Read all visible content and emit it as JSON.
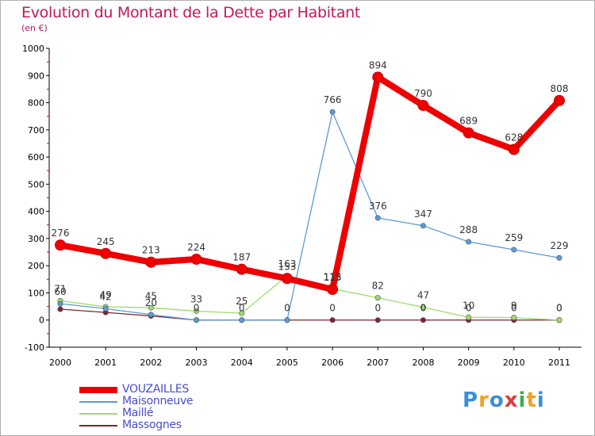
{
  "header": {
    "title": "Evolution du Montant de la Dette par Habitant",
    "subtitle": "(en €)"
  },
  "logo": {
    "letters": [
      "P",
      "r",
      "o",
      "x",
      "i",
      "t",
      "i"
    ],
    "colors": [
      "#3a8fd6",
      "#f0a020",
      "#3a8fd6",
      "#e03a3a",
      "#3ab04a",
      "#f0a020",
      "#3a8fd6"
    ]
  },
  "chart_data": {
    "type": "line",
    "title": "Evolution du Montant de la Dette par Habitant",
    "subtitle": "(en €)",
    "xlabel": "",
    "ylabel": "",
    "x": [
      "2000",
      "2001",
      "2002",
      "2003",
      "2004",
      "2005",
      "2006",
      "2007",
      "2008",
      "2009",
      "2010",
      "2011"
    ],
    "ylim": [
      -100,
      1000
    ],
    "yticks": [
      -100,
      0,
      100,
      200,
      300,
      400,
      500,
      600,
      700,
      800,
      900,
      1000
    ],
    "grid": false,
    "legend_position": "bottom-left",
    "series": [
      {
        "name": "VOUZAILLES",
        "color": "#ee0000",
        "values": [
          276,
          245,
          213,
          224,
          187,
          153,
          113,
          894,
          790,
          689,
          628,
          808
        ],
        "labels": [
          "276",
          "245",
          "213",
          "224",
          "187",
          "153",
          "113",
          "894",
          "790",
          "689",
          "628",
          "808"
        ]
      },
      {
        "name": "Maisonneuve",
        "color": "#5b9bd5",
        "values": [
          60,
          42,
          20,
          0,
          0,
          0,
          766,
          376,
          347,
          288,
          259,
          229
        ],
        "labels": [
          "60",
          "42",
          "20",
          "0",
          "0",
          "0",
          "766",
          "376",
          "347",
          "288",
          "259",
          "229"
        ]
      },
      {
        "name": "Maillé",
        "color": "#9edb6e",
        "values": [
          71,
          49,
          45,
          33,
          25,
          163,
          115,
          82,
          47,
          10,
          9,
          0
        ],
        "labels": [
          "71",
          "49",
          "45",
          "33",
          "25",
          "163",
          "115",
          "82",
          "47",
          "10",
          "9",
          "0"
        ]
      },
      {
        "name": "Massognes",
        "color": "#7a2630",
        "values": [
          40,
          28,
          15,
          0,
          0,
          0,
          0,
          0,
          0,
          0,
          0,
          0
        ],
        "labels": [
          "",
          "",
          "",
          "",
          "",
          "",
          "0",
          "0",
          "0",
          "0",
          "0",
          "0"
        ]
      }
    ]
  }
}
